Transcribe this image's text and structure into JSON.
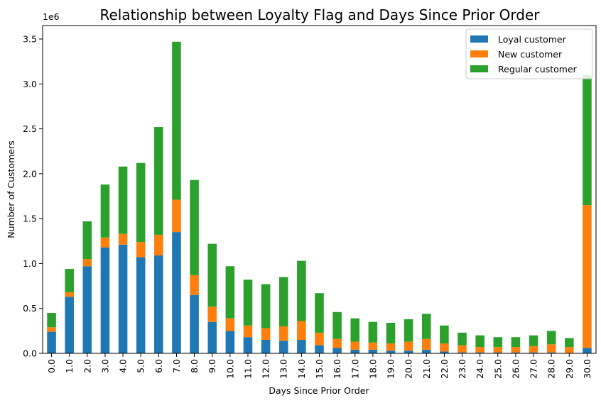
{
  "chart_data": {
    "type": "bar",
    "stacked": true,
    "title": "Relationship between Loyalty Flag and Days Since Prior Order",
    "xlabel": "Days Since Prior Order",
    "ylabel": "Number of Customers",
    "y_offset_label": "1e6",
    "ylim": [
      0,
      3.65
    ],
    "yticks": [
      "0.0",
      "0.5",
      "1.0",
      "1.5",
      "2.0",
      "2.5",
      "3.0",
      "3.5"
    ],
    "grid": false,
    "legend_position": "top-right",
    "categories": [
      "0.0",
      "1.0",
      "2.0",
      "3.0",
      "4.0",
      "5.0",
      "6.0",
      "7.0",
      "8.0",
      "9.0",
      "10.0",
      "11.0",
      "12.0",
      "13.0",
      "14.0",
      "15.0",
      "16.0",
      "17.0",
      "18.0",
      "19.0",
      "20.0",
      "21.0",
      "22.0",
      "23.0",
      "24.0",
      "25.0",
      "26.0",
      "27.0",
      "28.0",
      "29.0",
      "30.0"
    ],
    "series": [
      {
        "name": "Loyal customer",
        "color": "#1f77b4",
        "values": [
          0.24,
          0.63,
          0.97,
          1.18,
          1.21,
          1.07,
          1.09,
          1.35,
          0.65,
          0.35,
          0.25,
          0.18,
          0.15,
          0.14,
          0.15,
          0.09,
          0.06,
          0.04,
          0.04,
          0.03,
          0.03,
          0.04,
          0.02,
          0.01,
          0.01,
          0.01,
          0.01,
          0.01,
          0.01,
          0.005,
          0.06
        ]
      },
      {
        "name": "New customer",
        "color": "#ff7f0e",
        "values": [
          0.05,
          0.05,
          0.08,
          0.11,
          0.12,
          0.17,
          0.23,
          0.36,
          0.22,
          0.17,
          0.14,
          0.13,
          0.13,
          0.16,
          0.21,
          0.14,
          0.1,
          0.09,
          0.08,
          0.08,
          0.1,
          0.12,
          0.09,
          0.08,
          0.06,
          0.06,
          0.06,
          0.07,
          0.09,
          0.065,
          1.59
        ]
      },
      {
        "name": "Regular customer",
        "color": "#2ca02c",
        "values": [
          0.16,
          0.26,
          0.42,
          0.59,
          0.75,
          0.88,
          1.2,
          1.76,
          1.06,
          0.7,
          0.58,
          0.51,
          0.49,
          0.55,
          0.67,
          0.44,
          0.3,
          0.26,
          0.23,
          0.23,
          0.25,
          0.28,
          0.2,
          0.14,
          0.13,
          0.11,
          0.11,
          0.12,
          0.15,
          0.1,
          1.45
        ]
      }
    ]
  }
}
